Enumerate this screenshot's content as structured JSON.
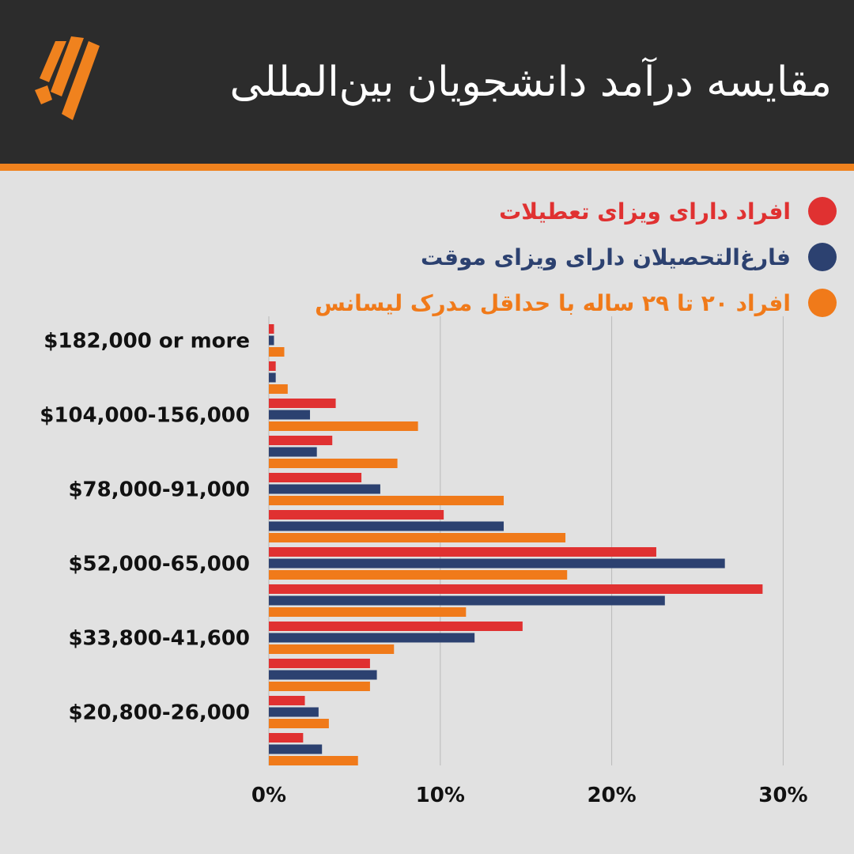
{
  "header": {
    "title": "مقایسه درآمد دانشجویان بین‌المللی",
    "background": "#2c2c2c",
    "accent": "#f0821e",
    "logo_icon": "sbs-logo-icon"
  },
  "chart_data": {
    "type": "bar",
    "orientation": "horizontal",
    "categories": [
      "$182,000 or more",
      "",
      "$104,000-156,000",
      "",
      "$78,000-91,000",
      "",
      "$52,000-65,000",
      "",
      "$33,800-41,600",
      "",
      "$20,800-26,000",
      ""
    ],
    "series": [
      {
        "name": "افراد دارای ویزای تعطیلات",
        "color": "#e03131",
        "values": [
          0.3,
          0.4,
          3.9,
          3.7,
          5.4,
          10.2,
          22.6,
          28.8,
          14.8,
          5.9,
          2.1,
          2.0
        ]
      },
      {
        "name": "فارغ‌التحصیلان دارای ویزای موقت",
        "color": "#2c4170",
        "values": [
          0.3,
          0.4,
          2.4,
          2.8,
          6.5,
          13.7,
          26.6,
          23.1,
          12.0,
          6.3,
          2.9,
          3.1
        ]
      },
      {
        "name": "افراد ۲۰ تا ۲۹ ساله با حداقل مدرک لیسانس",
        "color": "#f07a1a",
        "values": [
          0.9,
          1.1,
          8.7,
          7.5,
          13.7,
          17.3,
          17.4,
          11.5,
          7.3,
          5.9,
          3.5,
          5.2
        ]
      }
    ],
    "xlim": [
      0,
      30
    ],
    "xticks": [
      "0%",
      "10%",
      "20%",
      "30%"
    ],
    "grid": true,
    "legend_position": "top-right"
  }
}
